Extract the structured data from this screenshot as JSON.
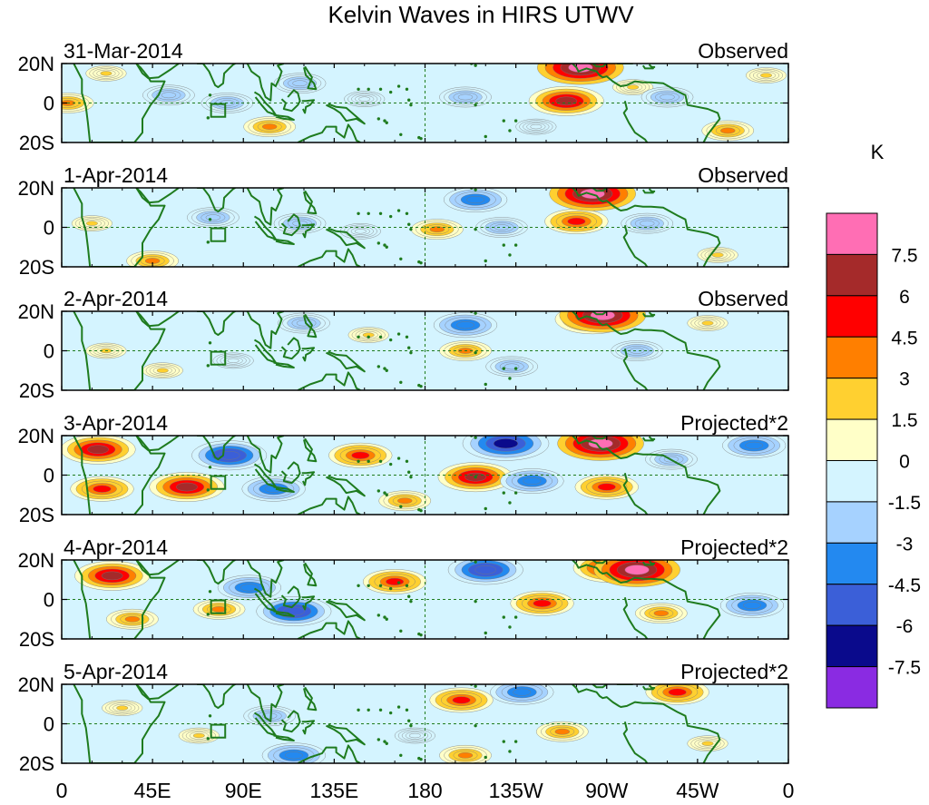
{
  "chart_data": {
    "type": "heatmap",
    "title": "Kelvin Waves in HIRS UTWV",
    "units": "K",
    "xlabel": "",
    "ylabel": "",
    "x_ticks": [
      "0",
      "45E",
      "90E",
      "135E",
      "180",
      "135W",
      "90W",
      "45W",
      "0"
    ],
    "x_tick_lon": [
      0,
      45,
      90,
      135,
      180,
      225,
      270,
      315,
      360
    ],
    "y_ticks": [
      "20N",
      "0",
      "20S"
    ],
    "y_tick_lat": [
      20,
      0,
      -20
    ],
    "lon_range": [
      0,
      360
    ],
    "lat_range": [
      -20,
      20
    ],
    "colorbar": {
      "levels": [
        "7.5",
        "6",
        "4.5",
        "3",
        "1.5",
        "0",
        "-1.5",
        "-3",
        "-4.5",
        "-6",
        "-7.5"
      ],
      "colors": [
        "#ff6eb4",
        "#a52a2a",
        "#ff0000",
        "#ff7f00",
        "#ffd030",
        "#ffffc8",
        "#d4f4ff",
        "#a6d2ff",
        "#2389f0",
        "#3b5fd8",
        "#0a0a8c",
        "#8a2be2"
      ]
    },
    "panels": [
      {
        "date": "31-Mar-2014",
        "label": "Observed",
        "anomalies": [
          {
            "lon": 3,
            "lat": 0,
            "value": 3
          },
          {
            "lon": 22,
            "lat": 15,
            "value": 1.5
          },
          {
            "lon": 53,
            "lat": 4,
            "value": -3
          },
          {
            "lon": 82,
            "lat": 0,
            "value": -3
          },
          {
            "lon": 103,
            "lat": -12,
            "value": 3
          },
          {
            "lon": 118,
            "lat": 10,
            "value": -3
          },
          {
            "lon": 150,
            "lat": 2,
            "value": -1.5
          },
          {
            "lon": 200,
            "lat": 3,
            "value": -3
          },
          {
            "lon": 235,
            "lat": -12,
            "value": -1.5
          },
          {
            "lon": 250,
            "lat": 1,
            "value": 6
          },
          {
            "lon": 257,
            "lat": 18,
            "value": 7.5
          },
          {
            "lon": 283,
            "lat": 8,
            "value": 1.5
          },
          {
            "lon": 300,
            "lat": 3,
            "value": -3
          },
          {
            "lon": 330,
            "lat": -14,
            "value": 3
          },
          {
            "lon": 349,
            "lat": 14,
            "value": 1.5
          }
        ]
      },
      {
        "date": "1-Apr-2014",
        "label": "Observed",
        "anomalies": [
          {
            "lon": 15,
            "lat": 2,
            "value": 1.5
          },
          {
            "lon": 45,
            "lat": -17,
            "value": 3
          },
          {
            "lon": 75,
            "lat": 5,
            "value": -3
          },
          {
            "lon": 118,
            "lat": 2,
            "value": -3
          },
          {
            "lon": 148,
            "lat": -2,
            "value": -1.5
          },
          {
            "lon": 186,
            "lat": -1,
            "value": 3
          },
          {
            "lon": 205,
            "lat": 14,
            "value": -4.5
          },
          {
            "lon": 218,
            "lat": 0,
            "value": -3
          },
          {
            "lon": 255,
            "lat": 3,
            "value": 4.5
          },
          {
            "lon": 263,
            "lat": 17,
            "value": 7.5
          },
          {
            "lon": 290,
            "lat": 2,
            "value": -3
          },
          {
            "lon": 325,
            "lat": -14,
            "value": 1.5
          }
        ]
      },
      {
        "date": "2-Apr-2014",
        "label": "Observed",
        "anomalies": [
          {
            "lon": 22,
            "lat": 0,
            "value": 1.5
          },
          {
            "lon": 50,
            "lat": -10,
            "value": 1.5
          },
          {
            "lon": 85,
            "lat": -5,
            "value": -1.5
          },
          {
            "lon": 120,
            "lat": 14,
            "value": -3
          },
          {
            "lon": 152,
            "lat": 8,
            "value": 1.5
          },
          {
            "lon": 200,
            "lat": 13,
            "value": -4.5
          },
          {
            "lon": 200,
            "lat": 0,
            "value": 3
          },
          {
            "lon": 223,
            "lat": -8,
            "value": -3
          },
          {
            "lon": 263,
            "lat": 16,
            "value": 6
          },
          {
            "lon": 268,
            "lat": 18,
            "value": 7.5
          },
          {
            "lon": 285,
            "lat": 0,
            "value": -3
          },
          {
            "lon": 320,
            "lat": 14,
            "value": 1.5
          }
        ]
      },
      {
        "date": "3-Apr-2014",
        "label": "Projected*2",
        "anomalies": [
          {
            "lon": 18,
            "lat": 13,
            "value": 6
          },
          {
            "lon": 20,
            "lat": -7,
            "value": 4.5
          },
          {
            "lon": 62,
            "lat": -6,
            "value": 6
          },
          {
            "lon": 83,
            "lat": 10,
            "value": -6
          },
          {
            "lon": 105,
            "lat": -7,
            "value": -4.5
          },
          {
            "lon": 148,
            "lat": 10,
            "value": 4.5
          },
          {
            "lon": 170,
            "lat": -13,
            "value": 3
          },
          {
            "lon": 205,
            "lat": -1,
            "value": 6
          },
          {
            "lon": 220,
            "lat": 16,
            "value": -7.5
          },
          {
            "lon": 233,
            "lat": -3,
            "value": -4.5
          },
          {
            "lon": 267,
            "lat": 16,
            "value": 7.5
          },
          {
            "lon": 270,
            "lat": -6,
            "value": 4.5
          },
          {
            "lon": 302,
            "lat": 8,
            "value": -3
          },
          {
            "lon": 343,
            "lat": 15,
            "value": -4.5
          }
        ]
      },
      {
        "date": "4-Apr-2014",
        "label": "Projected*2",
        "anomalies": [
          {
            "lon": 25,
            "lat": 12,
            "value": 6
          },
          {
            "lon": 35,
            "lat": -10,
            "value": 3
          },
          {
            "lon": 78,
            "lat": -5,
            "value": 3
          },
          {
            "lon": 93,
            "lat": 6,
            "value": -4.5
          },
          {
            "lon": 115,
            "lat": -6,
            "value": -6
          },
          {
            "lon": 165,
            "lat": 9,
            "value": 4.5
          },
          {
            "lon": 210,
            "lat": 15,
            "value": -6
          },
          {
            "lon": 238,
            "lat": -2,
            "value": 4.5
          },
          {
            "lon": 272,
            "lat": 16,
            "value": 6
          },
          {
            "lon": 285,
            "lat": 15,
            "value": 7.5
          },
          {
            "lon": 297,
            "lat": -7,
            "value": 3
          },
          {
            "lon": 342,
            "lat": -3,
            "value": -4.5
          }
        ]
      },
      {
        "date": "5-Apr-2014",
        "label": "Projected*2",
        "anomalies": [
          {
            "lon": 30,
            "lat": 8,
            "value": 1.5
          },
          {
            "lon": 68,
            "lat": -6,
            "value": 1.5
          },
          {
            "lon": 103,
            "lat": 4,
            "value": -3
          },
          {
            "lon": 115,
            "lat": -16,
            "value": -4.5
          },
          {
            "lon": 175,
            "lat": -6,
            "value": -1.5
          },
          {
            "lon": 198,
            "lat": 12,
            "value": 4.5
          },
          {
            "lon": 228,
            "lat": 16,
            "value": -4.5
          },
          {
            "lon": 248,
            "lat": -4,
            "value": 3
          },
          {
            "lon": 200,
            "lat": -16,
            "value": 3
          },
          {
            "lon": 305,
            "lat": 16,
            "value": 4.5
          },
          {
            "lon": 320,
            "lat": -10,
            "value": 1.5
          }
        ]
      }
    ]
  }
}
